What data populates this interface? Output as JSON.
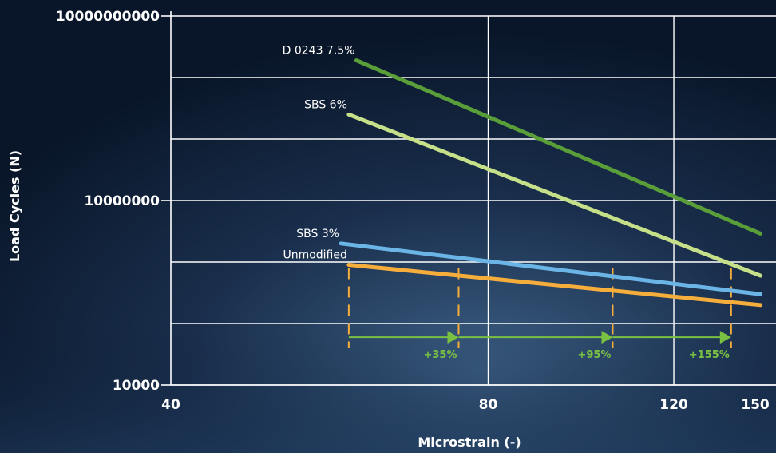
{
  "chart_data": {
    "type": "line",
    "title": "",
    "xlabel": "Microstrain (-)",
    "ylabel": "Load Cycles (N)",
    "x_ticks": [
      {
        "value": 40,
        "label": "40"
      },
      {
        "value": 80,
        "label": "80"
      },
      {
        "value": 120,
        "label": "120"
      },
      {
        "value": 150,
        "label": "150"
      }
    ],
    "y_ticks": [
      {
        "value": 10000,
        "label": "10000"
      },
      {
        "value": 10000000,
        "label": "10000000"
      },
      {
        "value": 10000000000,
        "label": "10000000000"
      }
    ],
    "y_scale": "log",
    "ylim": [
      10000,
      10000000000
    ],
    "x_scale": "log",
    "xlim": [
      40,
      150
    ],
    "grid": true,
    "series": [
      {
        "name": "D 0243 7.5%",
        "color": "#5a9e3a",
        "x": [
          60,
          145
        ],
        "y": [
          1900000000,
          2900000
        ]
      },
      {
        "name": "SBS 6%",
        "color": "#c6e08a",
        "x": [
          59,
          145
        ],
        "y": [
          250000000,
          600000
        ]
      },
      {
        "name": "SBS 3%",
        "color": "#6ab4e6",
        "x": [
          58,
          145
        ],
        "y": [
          2000000,
          300000
        ]
      },
      {
        "name": "Unmodified",
        "color": "#f5ad3c",
        "x": [
          59,
          145
        ],
        "y": [
          900000,
          200000
        ]
      }
    ],
    "reference_lines": [
      {
        "x": 59,
        "color": "#f5ad3c"
      },
      {
        "x": 75,
        "color": "#f5ad3c"
      },
      {
        "x": 105,
        "color": "#f5ad3c"
      },
      {
        "x": 136,
        "color": "#f5ad3c"
      }
    ],
    "improvement_arrows": [
      {
        "from_x": 59,
        "to_x": 75,
        "label": "+35%"
      },
      {
        "from_x": 75,
        "to_x": 105,
        "label": "+95%"
      },
      {
        "from_x": 105,
        "to_x": 136,
        "label": "+155%"
      }
    ],
    "arrow_color": "#7ac143",
    "arrow_y": 60000,
    "reference_y_range": [
      800000,
      40000
    ]
  }
}
